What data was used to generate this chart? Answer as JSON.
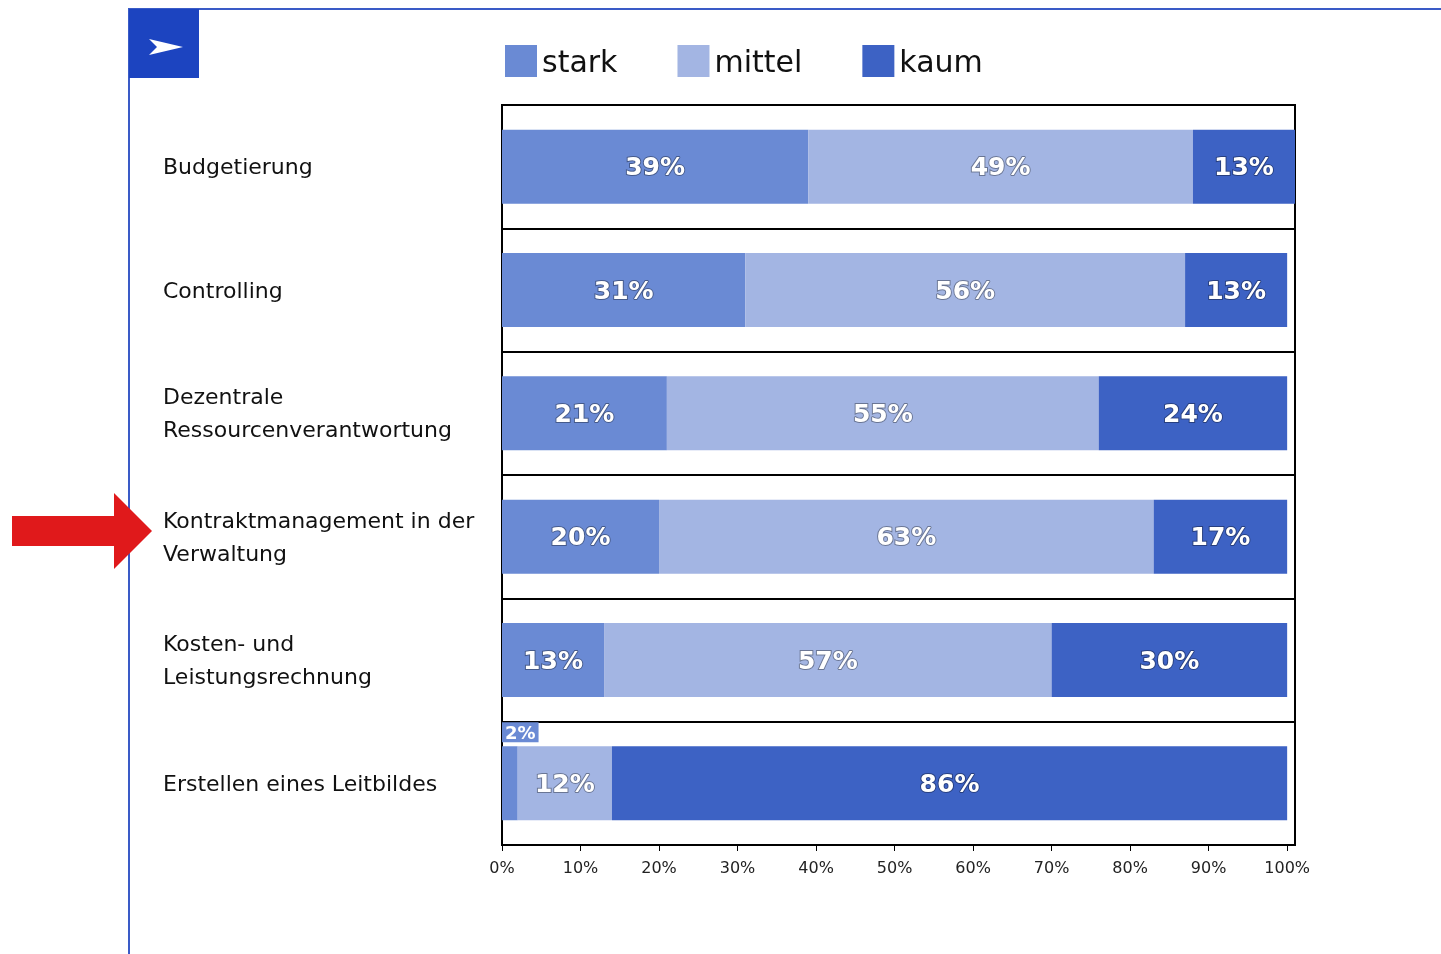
{
  "chart_data": {
    "type": "bar",
    "orientation": "horizontal",
    "stacked": true,
    "categories": [
      "Budgetierung",
      "Controlling",
      "Dezentrale\nRessourcenverantwortung",
      "Kontraktmanagement in der\nVerwaltung",
      "Kosten- und\nLeistungsrechnung",
      "Erstellen eines Leitbildes"
    ],
    "series": [
      {
        "name": "stark",
        "color": "#6a8ad4",
        "values": [
          39,
          31,
          21,
          20,
          13,
          2
        ]
      },
      {
        "name": "mittel",
        "color": "#a3b5e3",
        "values": [
          49,
          56,
          55,
          63,
          57,
          12
        ]
      },
      {
        "name": "kaum",
        "color": "#3d62c4",
        "values": [
          13,
          13,
          24,
          17,
          30,
          86
        ]
      }
    ],
    "xlim": [
      0,
      101
    ],
    "xticks": [
      {
        "value": 0,
        "label": "0%"
      },
      {
        "value": 10,
        "label": "10%"
      },
      {
        "value": 20,
        "label": "20%"
      },
      {
        "value": 30,
        "label": "30%"
      },
      {
        "value": 40,
        "label": "40%"
      },
      {
        "value": 50,
        "label": "50%"
      },
      {
        "value": 60,
        "label": "60%"
      },
      {
        "value": 70,
        "label": "70%"
      },
      {
        "value": 80,
        "label": "80%"
      },
      {
        "value": 90,
        "label": "90%"
      },
      {
        "value": 100,
        "label": "100%"
      }
    ],
    "value_labels": [
      [
        "39%",
        "31%",
        "21%",
        "20%",
        "13%",
        "2%"
      ],
      [
        "49%",
        "56%",
        "55%",
        "63%",
        "57%",
        "12%"
      ],
      [
        "13%",
        "13%",
        "24%",
        "17%",
        "30%",
        "86%"
      ]
    ],
    "grid": "y",
    "legend": "top"
  }
}
